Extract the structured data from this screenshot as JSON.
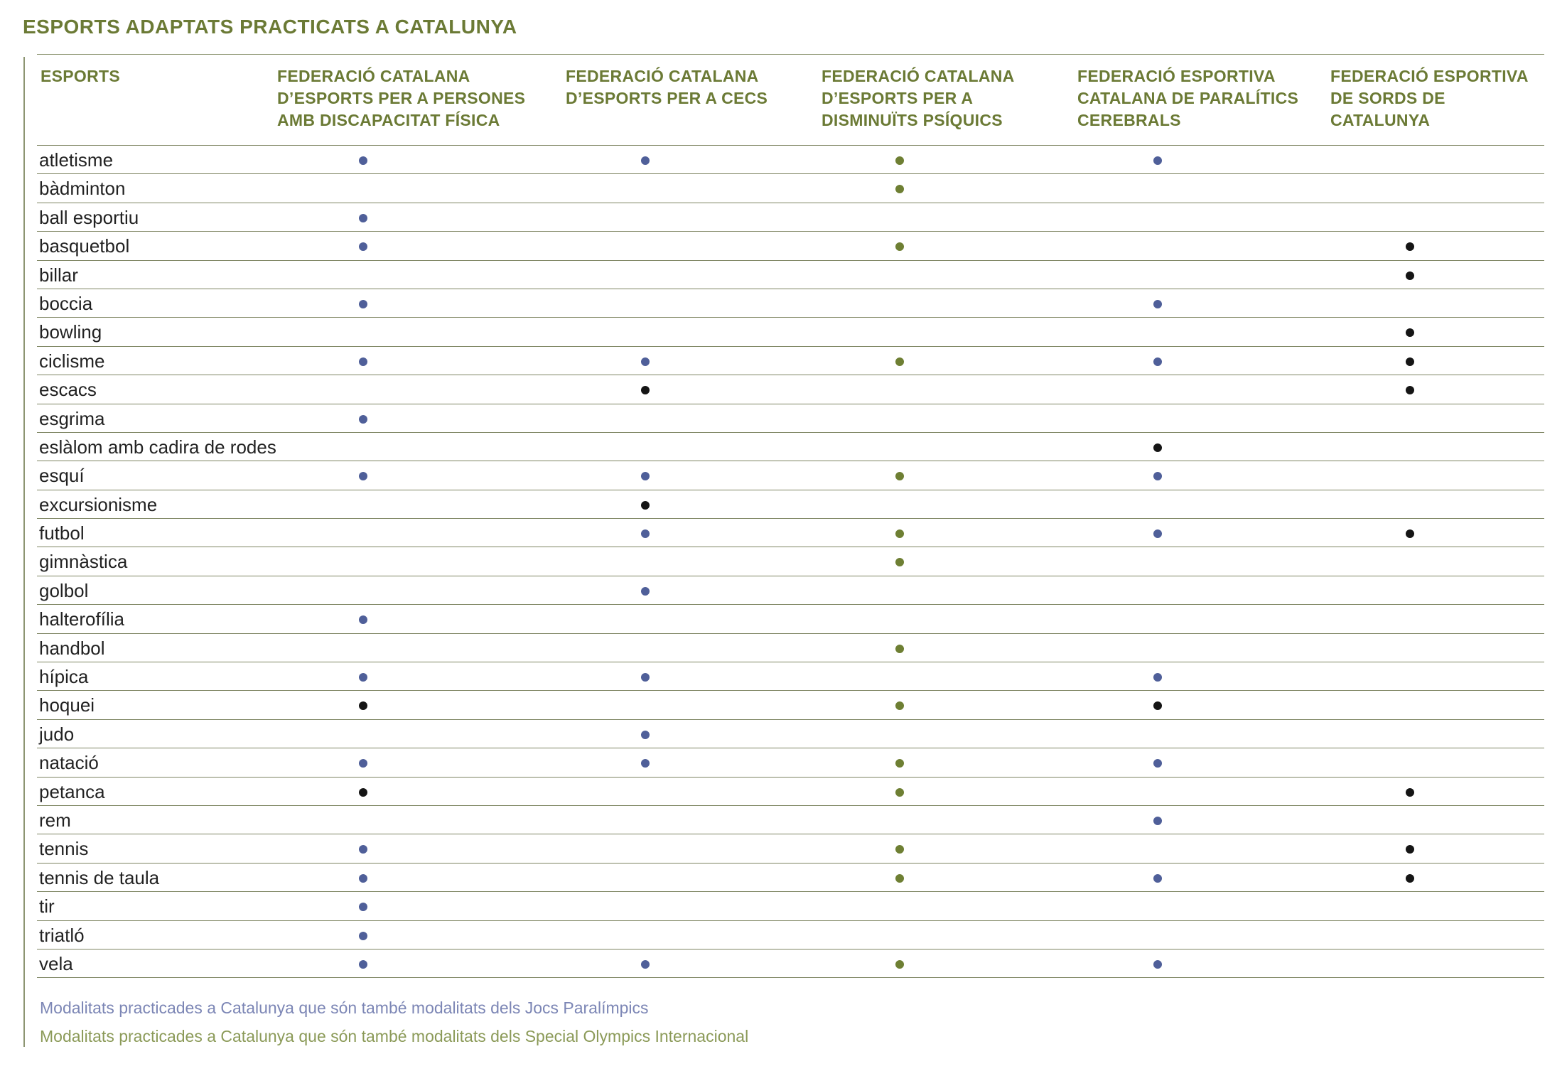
{
  "title": "ESPORTS ADAPTATS PRACTICATS A CATALUNYA",
  "colors": {
    "olive": "#6b7a35",
    "blue": "#4f5f99",
    "green": "#6e7f33",
    "black": "#151515",
    "legend_blue": "#7c86b5",
    "legend_green": "#8b9a58"
  },
  "columns": [
    {
      "label": "ESPORTS"
    },
    {
      "label": "FEDERACIÓ CATALANA\nD’ESPORTS PER A PERSONES\nAMB DISCAPACITAT FÍSICA"
    },
    {
      "label": "FEDERACIÓ CATALANA\nD’ESPORTS PER A CECS"
    },
    {
      "label": "FEDERACIÓ CATALANA\nD’ESPORTS  PER A\nDISMINUÏTS PSÍQUICS"
    },
    {
      "label": "FEDERACIÓ ESPORTIVA\nCATALANA DE PARALÍTICS\nCEREBRALS"
    },
    {
      "label": "FEDERACIÓ ESPORTIVA\nDE SORDS DE CATALUNYA"
    }
  ],
  "rows": [
    {
      "sport": "atletisme",
      "marks": [
        "blue",
        "blue",
        "green",
        "blue",
        ""
      ]
    },
    {
      "sport": "bàdminton",
      "marks": [
        "",
        "",
        "green",
        "",
        ""
      ]
    },
    {
      "sport": "ball esportiu",
      "marks": [
        "blue",
        "",
        "",
        "",
        ""
      ]
    },
    {
      "sport": "basquetbol",
      "marks": [
        "blue",
        "",
        "green",
        "",
        "black"
      ]
    },
    {
      "sport": "billar",
      "marks": [
        "",
        "",
        "",
        "",
        "black"
      ]
    },
    {
      "sport": "boccia",
      "marks": [
        "blue",
        "",
        "",
        "blue",
        ""
      ]
    },
    {
      "sport": "bowling",
      "marks": [
        "",
        "",
        "",
        "",
        "black"
      ]
    },
    {
      "sport": "ciclisme",
      "marks": [
        "blue",
        "blue",
        "green",
        "blue",
        "black"
      ]
    },
    {
      "sport": "escacs",
      "marks": [
        "",
        "black",
        "",
        "",
        "black"
      ]
    },
    {
      "sport": "esgrima",
      "marks": [
        "blue",
        "",
        "",
        "",
        ""
      ]
    },
    {
      "sport": "eslàlom amb cadira de rodes",
      "marks": [
        "",
        "",
        "",
        "black",
        ""
      ]
    },
    {
      "sport": "esquí",
      "marks": [
        "blue",
        "blue",
        "green",
        "blue",
        ""
      ]
    },
    {
      "sport": "excursionisme",
      "marks": [
        "",
        "black",
        "",
        "",
        ""
      ]
    },
    {
      "sport": "futbol",
      "marks": [
        "",
        "blue",
        "green",
        "blue",
        "black"
      ]
    },
    {
      "sport": "gimnàstica",
      "marks": [
        "",
        "",
        "green",
        "",
        ""
      ]
    },
    {
      "sport": "golbol",
      "marks": [
        "",
        "blue",
        "",
        "",
        ""
      ]
    },
    {
      "sport": "halterofília",
      "marks": [
        "blue",
        "",
        "",
        "",
        ""
      ]
    },
    {
      "sport": "handbol",
      "marks": [
        "",
        "",
        "green",
        "",
        ""
      ]
    },
    {
      "sport": "hípica",
      "marks": [
        "blue",
        "blue",
        "",
        "blue",
        ""
      ]
    },
    {
      "sport": "hoquei",
      "marks": [
        "black",
        "",
        "green",
        "black",
        ""
      ]
    },
    {
      "sport": "judo",
      "marks": [
        "",
        "blue",
        "",
        "",
        ""
      ]
    },
    {
      "sport": "natació",
      "marks": [
        "blue",
        "blue",
        "green",
        "blue",
        ""
      ]
    },
    {
      "sport": "petanca",
      "marks": [
        "black",
        "",
        "green",
        "",
        "black"
      ]
    },
    {
      "sport": "rem",
      "marks": [
        "",
        "",
        "",
        "blue",
        ""
      ]
    },
    {
      "sport": "tennis",
      "marks": [
        "blue",
        "",
        "green",
        "",
        "black"
      ]
    },
    {
      "sport": "tennis de taula",
      "marks": [
        "blue",
        "",
        "green",
        "blue",
        "black"
      ]
    },
    {
      "sport": "tir",
      "marks": [
        "blue",
        "",
        "",
        "",
        ""
      ]
    },
    {
      "sport": "triatló",
      "marks": [
        "blue",
        "",
        "",
        "",
        ""
      ]
    },
    {
      "sport": "vela",
      "marks": [
        "blue",
        "blue",
        "green",
        "blue",
        ""
      ]
    }
  ],
  "legend": [
    {
      "text": "Modalitats practicades a Catalunya que són també modalitats dels Jocs Paralímpics",
      "color": "blue"
    },
    {
      "text": "Modalitats practicades a Catalunya que són també modalitats dels Special Olympics Internacional",
      "color": "green"
    }
  ]
}
